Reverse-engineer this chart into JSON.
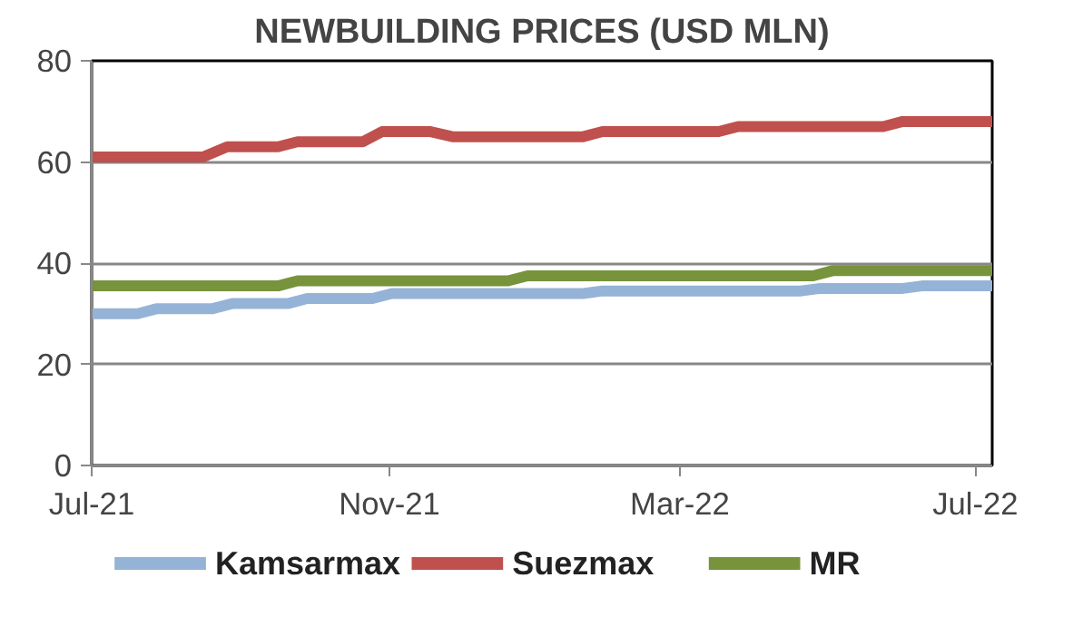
{
  "chart_data": {
    "type": "line",
    "title": "NEWBUILDING PRICES (USD MLN)",
    "xlim": [
      "2021-07-01",
      "2022-07-08"
    ],
    "xticks": [
      {
        "value": "2021-07-01",
        "label": "Jul-21"
      },
      {
        "value": "2021-11-01",
        "label": "Nov-21"
      },
      {
        "value": "2022-03-01",
        "label": "Mar-22"
      },
      {
        "value": "2022-07-01",
        "label": "Jul-22"
      }
    ],
    "ylim": [
      0,
      80
    ],
    "yticks": [
      0,
      20,
      40,
      60,
      80
    ],
    "grid": "y",
    "legend": "bottom",
    "line_style": "solid",
    "marker": "none",
    "series": [
      {
        "name": "Kamsarmax",
        "color": "#95b3d7",
        "x": [
          "2021-07-01",
          "2021-07-20",
          "2021-07-28",
          "2021-08-20",
          "2021-08-28",
          "2021-09-20",
          "2021-09-28",
          "2021-10-25",
          "2021-11-02",
          "2022-01-20",
          "2022-01-28",
          "2022-04-20",
          "2022-04-28",
          "2022-06-01",
          "2022-06-09",
          "2022-07-08"
        ],
        "values": [
          30,
          30,
          31,
          31,
          32,
          32,
          33,
          33,
          34,
          34,
          34.5,
          34.5,
          35,
          35,
          35.5,
          35.5
        ]
      },
      {
        "name": "Suezmax",
        "color": "#c0504d",
        "x": [
          "2021-07-01",
          "2021-08-16",
          "2021-08-26",
          "2021-09-16",
          "2021-09-24",
          "2021-10-21",
          "2021-10-29",
          "2021-11-18",
          "2021-11-27",
          "2022-01-20",
          "2022-01-28",
          "2022-03-17",
          "2022-03-25",
          "2022-05-24",
          "2022-06-01",
          "2022-07-08"
        ],
        "values": [
          61,
          61,
          63,
          63,
          64,
          64,
          66,
          66,
          65,
          65,
          66,
          66,
          67,
          67,
          68,
          68
        ]
      },
      {
        "name": "MR",
        "color": "#77933c",
        "x": [
          "2021-07-01",
          "2021-09-16",
          "2021-09-24",
          "2021-12-20",
          "2021-12-28",
          "2022-04-25",
          "2022-05-03",
          "2022-07-08"
        ],
        "values": [
          35.5,
          35.5,
          36.5,
          36.5,
          37.5,
          37.5,
          38.5,
          38.5
        ]
      }
    ]
  }
}
